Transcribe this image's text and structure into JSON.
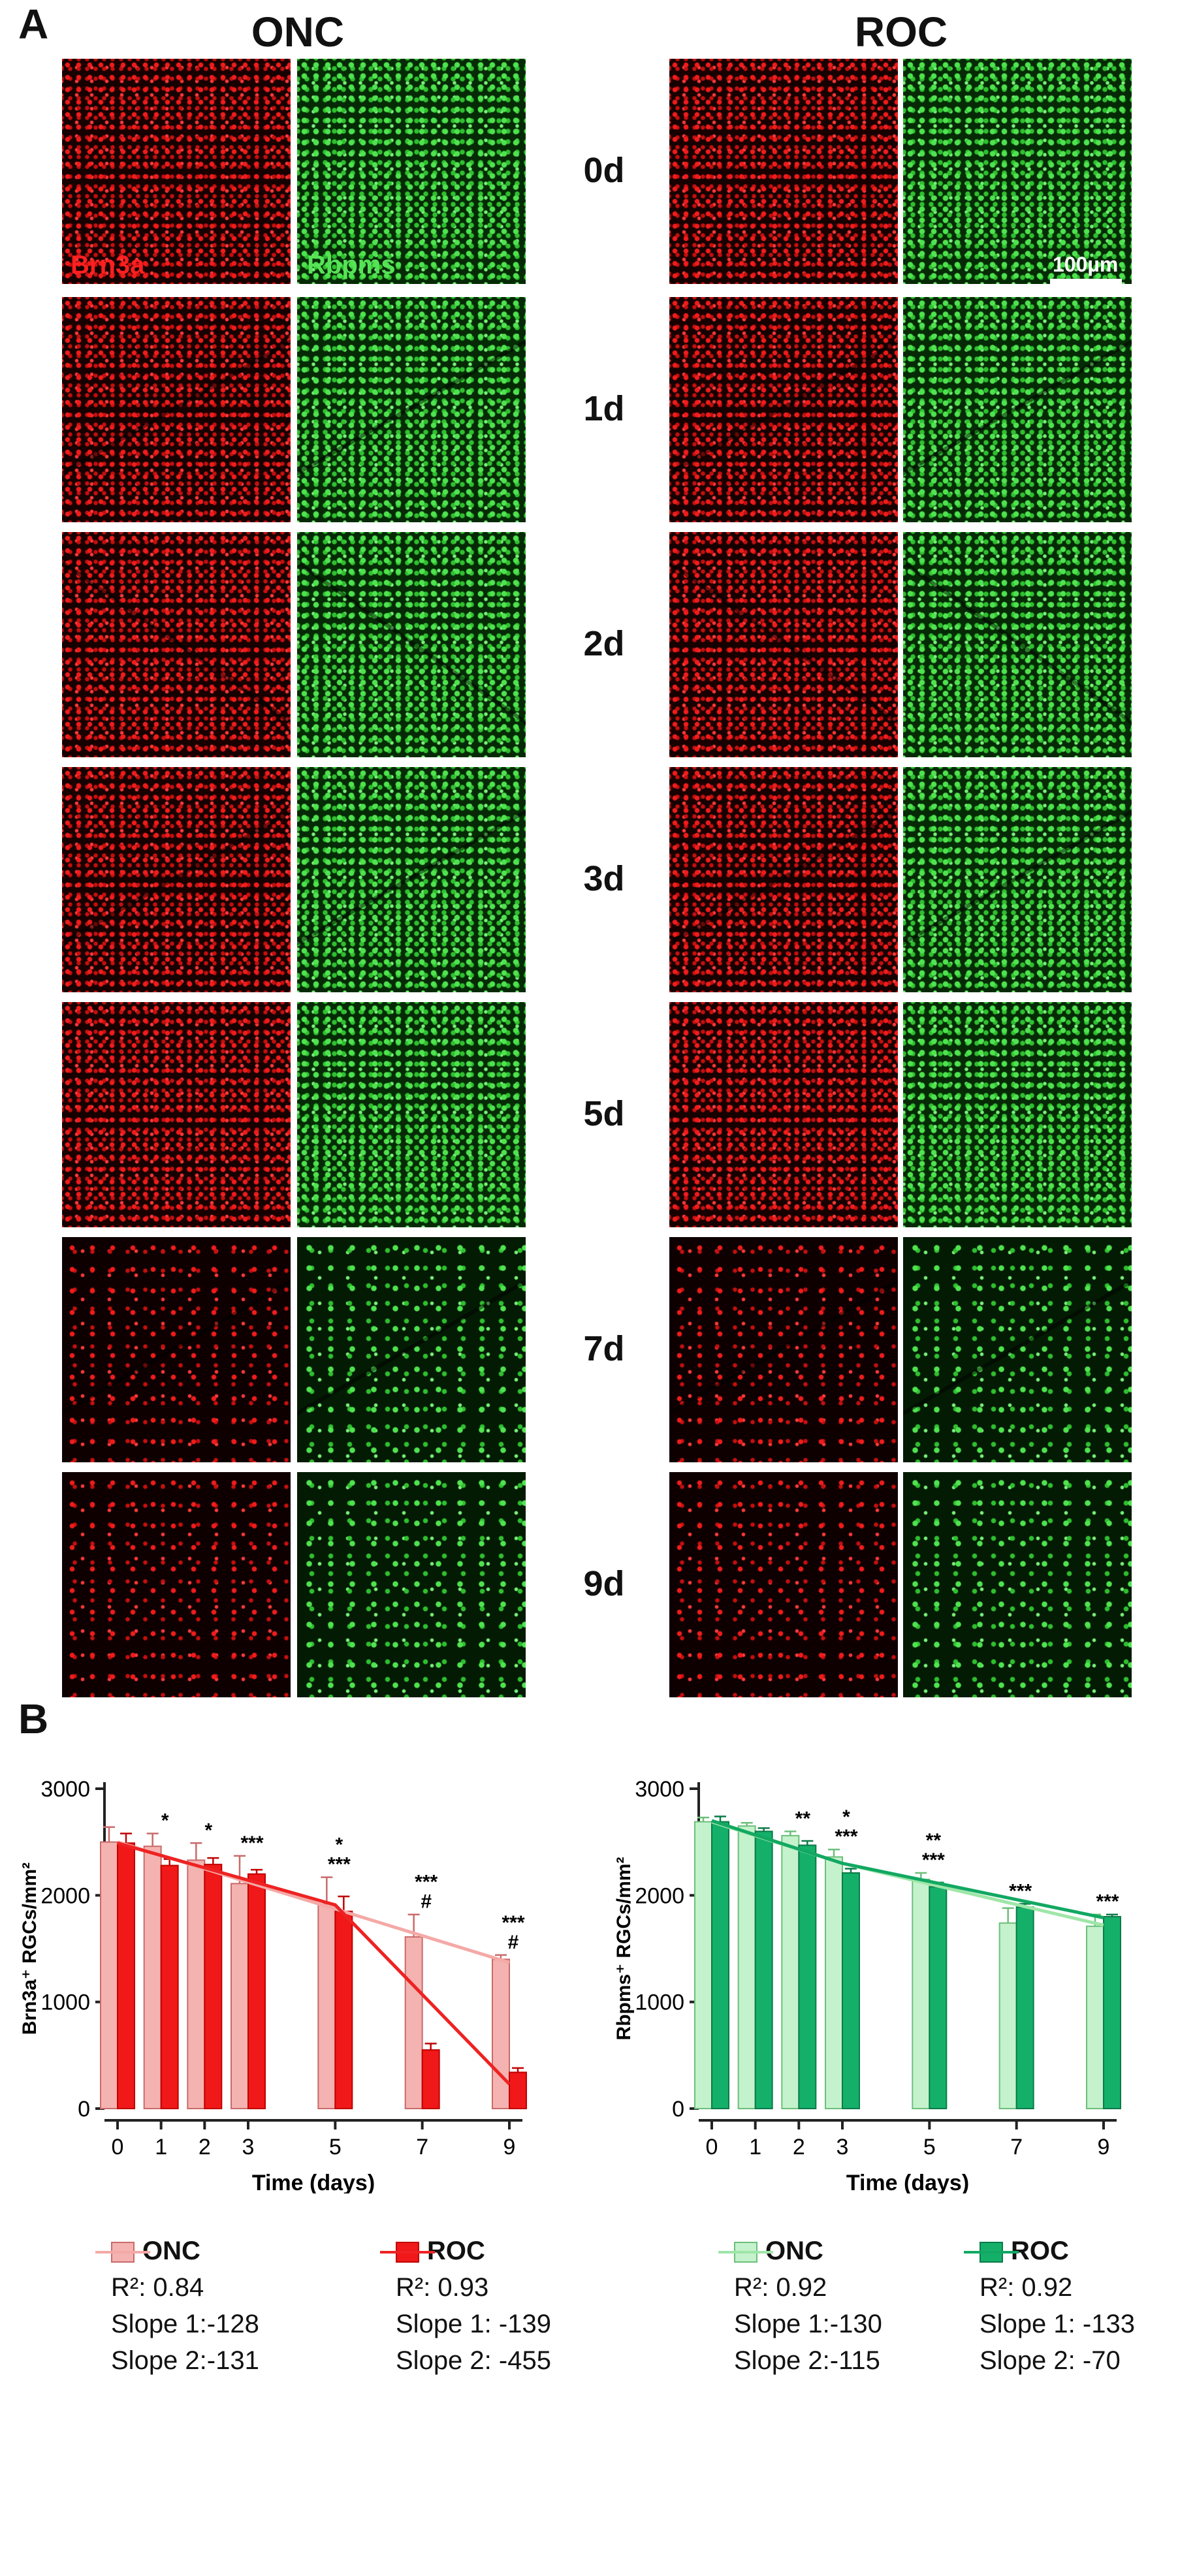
{
  "panel_a": {
    "letter": "A",
    "group_onc": "ONC",
    "group_roc": "ROC",
    "stain_brn3a": "Brn3a",
    "stain_rbpms": "Rbpms",
    "scale_bar": "100µm",
    "days": [
      "0d",
      "1d",
      "2d",
      "3d",
      "5d",
      "7d",
      "9d"
    ]
  },
  "panel_b": {
    "letter": "B"
  },
  "chart_data": [
    {
      "type": "bar",
      "xlabel": "Time (days)",
      "ylabel": "Brn3a⁺ RGCs/mm²",
      "ylim": [
        0,
        3000
      ],
      "yticks": [
        "0",
        "1000",
        "2000",
        "3000"
      ],
      "categories": [
        "0",
        "1",
        "2",
        "3",
        "5",
        "7",
        "9"
      ],
      "series": [
        {
          "name": "ONC",
          "color": "#f4b3b1",
          "edge": "#c96a6a",
          "values": [
            2500,
            2460,
            2330,
            2110,
            1920,
            1610,
            1400
          ],
          "errors": [
            140,
            120,
            160,
            260,
            250,
            210,
            40
          ]
        },
        {
          "name": "ROC",
          "color": "#f01818",
          "edge": "#c00000",
          "values": [
            2490,
            2280,
            2290,
            2200,
            1850,
            550,
            340
          ],
          "errors": [
            90,
            60,
            60,
            40,
            140,
            60,
            40
          ]
        }
      ],
      "trend_lines": [
        {
          "series": "ONC",
          "color": "#f4a9a6",
          "points": [
            [
              0,
              2500
            ],
            [
              9,
              1370
            ]
          ]
        },
        {
          "series": "ROC",
          "color": "#ee2222",
          "points": [
            [
              0,
              2490
            ],
            [
              5,
              1910
            ],
            [
              9,
              230
            ]
          ]
        }
      ],
      "annotations": [
        {
          "x": "1",
          "text": "*"
        },
        {
          "x": "2",
          "text": "*"
        },
        {
          "x": "3",
          "text": "***"
        },
        {
          "x": "5",
          "text": "*"
        },
        {
          "x": "5",
          "text": "***"
        },
        {
          "x": "7",
          "text": "***"
        },
        {
          "x": "7",
          "text": "#"
        },
        {
          "x": "9",
          "text": "***"
        },
        {
          "x": "9",
          "text": "#"
        }
      ],
      "legend": [
        {
          "name": "ONC",
          "r2": "R²: 0.84",
          "slope1": "Slope 1:-128",
          "slope2": "Slope 2:-131"
        },
        {
          "name": "ROC",
          "r2": "R²: 0.93",
          "slope1": "Slope 1: -139",
          "slope2": "Slope 2: -455"
        }
      ]
    },
    {
      "type": "bar",
      "xlabel": "Time (days)",
      "ylabel": "Rbpms⁺ RGCs/mm²",
      "ylim": [
        0,
        3000
      ],
      "yticks": [
        "0",
        "1000",
        "2000",
        "3000"
      ],
      "categories": [
        "0",
        "1",
        "2",
        "3",
        "5",
        "7",
        "9"
      ],
      "series": [
        {
          "name": "ONC",
          "color": "#c4f2cc",
          "edge": "#6cbf7a",
          "values": [
            2690,
            2650,
            2560,
            2360,
            2150,
            1740,
            1710
          ],
          "errors": [
            40,
            30,
            40,
            70,
            60,
            140,
            110
          ]
        },
        {
          "name": "ROC",
          "color": "#14b06a",
          "edge": "#0b7a48",
          "values": [
            2690,
            2600,
            2470,
            2210,
            2080,
            1890,
            1800
          ],
          "errors": [
            50,
            30,
            40,
            40,
            40,
            30,
            20
          ]
        }
      ],
      "trend_lines": [
        {
          "series": "ONC",
          "color": "#9ee6a8",
          "points": [
            [
              0,
              2690
            ],
            [
              3,
              2300
            ],
            [
              9,
              1720
            ]
          ]
        },
        {
          "series": "ROC",
          "color": "#12a862",
          "points": [
            [
              0,
              2700
            ],
            [
              3,
              2300
            ],
            [
              9,
              1790
            ]
          ]
        }
      ],
      "annotations": [
        {
          "x": "2",
          "text": "**"
        },
        {
          "x": "3",
          "text": "*"
        },
        {
          "x": "3",
          "text": "***"
        },
        {
          "x": "5",
          "text": "**"
        },
        {
          "x": "5",
          "text": "***"
        },
        {
          "x": "7",
          "text": "***"
        },
        {
          "x": "9",
          "text": "***"
        }
      ],
      "legend": [
        {
          "name": "ONC",
          "r2": "R²: 0.92",
          "slope1": "Slope 1:-130",
          "slope2": "Slope 2:-115"
        },
        {
          "name": "ROC",
          "r2": "R²: 0.92",
          "slope1": "Slope 1: -133",
          "slope2": "Slope 2: -70"
        }
      ]
    }
  ]
}
